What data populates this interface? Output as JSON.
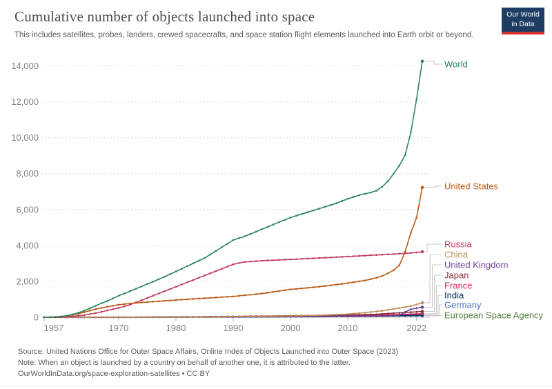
{
  "header": {
    "title": "Cumulative number of objects launched into space",
    "subtitle": "This includes satellites, probes, landers, crewed spacecrafts, and space station flight elements launched into Earth orbit or beyond.",
    "logo": {
      "line1": "Our World",
      "line2": "in Data"
    }
  },
  "footer": {
    "source": "Source: United Nations Office for Outer Space Affairs, Online Index of Objects Launched into Outer Space (2023)",
    "note": "Note: When an object is launched by a country on behalf of another one, it is attributed to the latter.",
    "license_url": "OurWorldInData.org/space-exploration-satellites",
    "license_suffix": " • CC BY"
  },
  "colors": {
    "logo_navy": "#1d3d63",
    "logo_red": "#d3352e",
    "axis_text": "#818181",
    "grid": "#dedede",
    "zero_line": "#c9c9c9",
    "connector": "#c8c8c8"
  },
  "chart_data": {
    "type": "line",
    "title": "Cumulative number of objects launched into space",
    "xlabel": "",
    "ylabel": "",
    "x_range": [
      1957,
      2023
    ],
    "x_ticks": [
      1957,
      1970,
      1980,
      1990,
      2000,
      2010,
      2022
    ],
    "y_ticks": [
      0,
      2000,
      4000,
      6000,
      8000,
      10000,
      12000,
      14000
    ],
    "y_tick_labels": [
      "0",
      "2,000",
      "4,000",
      "6,000",
      "8,000",
      "10,000",
      "12,000",
      "14,000"
    ],
    "ylim": [
      0,
      14500
    ],
    "grid": "horizontal-dashed",
    "legend_position": "labels-at-line-ends-right",
    "series": [
      {
        "name": "World",
        "color": "#2C8465",
        "anchors": [
          [
            1957,
            2
          ],
          [
            1958,
            10
          ],
          [
            1959,
            25
          ],
          [
            1960,
            50
          ],
          [
            1961,
            90
          ],
          [
            1962,
            160
          ],
          [
            1963,
            250
          ],
          [
            1964,
            370
          ],
          [
            1965,
            500
          ],
          [
            1966,
            640
          ],
          [
            1967,
            780
          ],
          [
            1968,
            900
          ],
          [
            1969,
            1050
          ],
          [
            1970,
            1200
          ],
          [
            1972,
            1450
          ],
          [
            1975,
            1850
          ],
          [
            1978,
            2250
          ],
          [
            1980,
            2550
          ],
          [
            1985,
            3300
          ],
          [
            1990,
            4300
          ],
          [
            1992,
            4500
          ],
          [
            1995,
            4900
          ],
          [
            1998,
            5300
          ],
          [
            2000,
            5550
          ],
          [
            2002,
            5750
          ],
          [
            2005,
            6050
          ],
          [
            2008,
            6350
          ],
          [
            2010,
            6600
          ],
          [
            2012,
            6800
          ],
          [
            2014,
            6950
          ],
          [
            2015,
            7050
          ],
          [
            2016,
            7270
          ],
          [
            2017,
            7570
          ],
          [
            2018,
            8000
          ],
          [
            2019,
            8450
          ],
          [
            2020,
            9025
          ],
          [
            2021,
            10290
          ],
          [
            2022,
            12150
          ],
          [
            2023,
            14260
          ]
        ]
      },
      {
        "name": "United States",
        "color": "#BE5915",
        "anchors": [
          [
            1957,
            0
          ],
          [
            1958,
            7
          ],
          [
            1959,
            20
          ],
          [
            1960,
            35
          ],
          [
            1961,
            70
          ],
          [
            1962,
            130
          ],
          [
            1963,
            200
          ],
          [
            1964,
            280
          ],
          [
            1965,
            370
          ],
          [
            1966,
            450
          ],
          [
            1967,
            520
          ],
          [
            1968,
            580
          ],
          [
            1969,
            640
          ],
          [
            1970,
            700
          ],
          [
            1972,
            770
          ],
          [
            1975,
            850
          ],
          [
            1980,
            960
          ],
          [
            1985,
            1060
          ],
          [
            1990,
            1160
          ],
          [
            1995,
            1320
          ],
          [
            2000,
            1550
          ],
          [
            2005,
            1700
          ],
          [
            2010,
            1900
          ],
          [
            2013,
            2050
          ],
          [
            2015,
            2200
          ],
          [
            2016,
            2300
          ],
          [
            2017,
            2450
          ],
          [
            2018,
            2620
          ],
          [
            2019,
            2900
          ],
          [
            2020,
            3650
          ],
          [
            2021,
            4700
          ],
          [
            2022,
            5550
          ],
          [
            2023,
            7230
          ]
        ]
      },
      {
        "name": "Russia",
        "color": "#C23A5F",
        "anchors": [
          [
            1957,
            2
          ],
          [
            1960,
            12
          ],
          [
            1962,
            50
          ],
          [
            1964,
            120
          ],
          [
            1966,
            230
          ],
          [
            1968,
            380
          ],
          [
            1970,
            520
          ],
          [
            1972,
            700
          ],
          [
            1974,
            950
          ],
          [
            1976,
            1200
          ],
          [
            1978,
            1450
          ],
          [
            1980,
            1700
          ],
          [
            1982,
            1950
          ],
          [
            1984,
            2200
          ],
          [
            1986,
            2450
          ],
          [
            1988,
            2700
          ],
          [
            1990,
            2950
          ],
          [
            1992,
            3080
          ],
          [
            1995,
            3150
          ],
          [
            2000,
            3220
          ],
          [
            2005,
            3300
          ],
          [
            2010,
            3380
          ],
          [
            2015,
            3470
          ],
          [
            2018,
            3520
          ],
          [
            2020,
            3560
          ],
          [
            2022,
            3610
          ],
          [
            2023,
            3650
          ]
        ]
      },
      {
        "name": "China",
        "color": "#BC8E5A",
        "anchors": [
          [
            1957,
            0
          ],
          [
            1969,
            0
          ],
          [
            1970,
            1
          ],
          [
            1975,
            4
          ],
          [
            1980,
            10
          ],
          [
            1985,
            18
          ],
          [
            1990,
            32
          ],
          [
            1995,
            50
          ],
          [
            2000,
            75
          ],
          [
            2005,
            110
          ],
          [
            2010,
            175
          ],
          [
            2012,
            230
          ],
          [
            2014,
            290
          ],
          [
            2016,
            360
          ],
          [
            2018,
            460
          ],
          [
            2019,
            510
          ],
          [
            2020,
            560
          ],
          [
            2021,
            630
          ],
          [
            2022,
            710
          ],
          [
            2023,
            810
          ]
        ]
      },
      {
        "name": "United Kingdom",
        "color": "#6D3E91",
        "anchors": [
          [
            1957,
            0
          ],
          [
            1961,
            0
          ],
          [
            1962,
            1
          ],
          [
            1970,
            5
          ],
          [
            1980,
            12
          ],
          [
            1990,
            25
          ],
          [
            2000,
            40
          ],
          [
            2010,
            55
          ],
          [
            2015,
            65
          ],
          [
            2018,
            80
          ],
          [
            2019,
            120
          ],
          [
            2020,
            290
          ],
          [
            2021,
            440
          ],
          [
            2022,
            505
          ],
          [
            2023,
            560
          ]
        ]
      },
      {
        "name": "Japan",
        "color": "#883039",
        "anchors": [
          [
            1957,
            0
          ],
          [
            1969,
            0
          ],
          [
            1970,
            2
          ],
          [
            1975,
            10
          ],
          [
            1980,
            20
          ],
          [
            1985,
            30
          ],
          [
            1990,
            45
          ],
          [
            1995,
            60
          ],
          [
            2000,
            85
          ],
          [
            2005,
            100
          ],
          [
            2010,
            125
          ],
          [
            2015,
            165
          ],
          [
            2018,
            230
          ],
          [
            2020,
            270
          ],
          [
            2022,
            300
          ],
          [
            2023,
            325
          ]
        ]
      },
      {
        "name": "France",
        "color": "#CE265E",
        "anchors": [
          [
            1957,
            0
          ],
          [
            1964,
            0
          ],
          [
            1965,
            1
          ],
          [
            1970,
            6
          ],
          [
            1975,
            12
          ],
          [
            1980,
            20
          ],
          [
            1985,
            30
          ],
          [
            1990,
            45
          ],
          [
            1995,
            60
          ],
          [
            2000,
            75
          ],
          [
            2005,
            90
          ],
          [
            2010,
            105
          ],
          [
            2015,
            125
          ],
          [
            2018,
            145
          ],
          [
            2020,
            165
          ],
          [
            2022,
            185
          ],
          [
            2023,
            195
          ]
        ]
      },
      {
        "name": "India",
        "color": "#00295B",
        "anchors": [
          [
            1957,
            0
          ],
          [
            1974,
            0
          ],
          [
            1975,
            1
          ],
          [
            1980,
            4
          ],
          [
            1985,
            8
          ],
          [
            1990,
            15
          ],
          [
            1995,
            22
          ],
          [
            2000,
            30
          ],
          [
            2005,
            40
          ],
          [
            2010,
            55
          ],
          [
            2015,
            75
          ],
          [
            2018,
            95
          ],
          [
            2020,
            105
          ],
          [
            2022,
            120
          ],
          [
            2023,
            130
          ]
        ]
      },
      {
        "name": "Germany",
        "color": "#4C74C1",
        "anchors": [
          [
            1957,
            0
          ],
          [
            1968,
            0
          ],
          [
            1969,
            1
          ],
          [
            1975,
            5
          ],
          [
            1980,
            10
          ],
          [
            1985,
            15
          ],
          [
            1990,
            22
          ],
          [
            1995,
            30
          ],
          [
            2000,
            38
          ],
          [
            2005,
            45
          ],
          [
            2010,
            52
          ],
          [
            2015,
            62
          ],
          [
            2018,
            72
          ],
          [
            2020,
            80
          ],
          [
            2022,
            88
          ],
          [
            2023,
            95
          ]
        ]
      },
      {
        "name": "European Space Agency",
        "color": "#578145",
        "anchors": [
          [
            1957,
            0
          ],
          [
            1967,
            0
          ],
          [
            1968,
            1
          ],
          [
            1975,
            5
          ],
          [
            1980,
            10
          ],
          [
            1985,
            15
          ],
          [
            1990,
            22
          ],
          [
            1995,
            30
          ],
          [
            2000,
            38
          ],
          [
            2005,
            45
          ],
          [
            2010,
            52
          ],
          [
            2015,
            58
          ],
          [
            2018,
            62
          ],
          [
            2020,
            66
          ],
          [
            2022,
            71
          ],
          [
            2023,
            75
          ]
        ]
      }
    ]
  }
}
